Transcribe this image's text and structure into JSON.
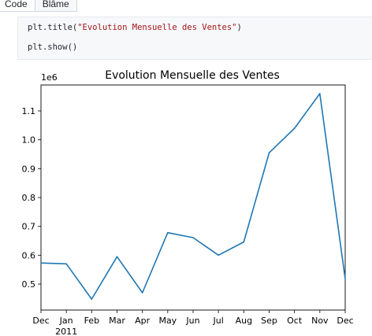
{
  "toolbar": {
    "code_label": "Code",
    "blame_label": "Blâme"
  },
  "code": {
    "line1_fn": "plt.title(",
    "line1_str": "\"Evolution Mensuelle des Ventes\"",
    "line1_end": ")",
    "line2": "plt.show()"
  },
  "colors": {
    "line": "#1f77b4",
    "axes": "#000000",
    "code_bg": "#f6f8fa"
  },
  "chart_data": {
    "type": "line",
    "title": "Evolution Mensuelle des Ventes",
    "xlabel": "",
    "ylabel": "",
    "y_offset_label": "1e6",
    "x_tick_labels": [
      "Dec",
      "Jan",
      "Feb",
      "Mar",
      "Apr",
      "May",
      "Jun",
      "Jul",
      "Aug",
      "Sep",
      "Oct",
      "Nov",
      "Dec"
    ],
    "x_year_label": "2011",
    "y_ticks": [
      0.5,
      0.6,
      0.7,
      0.8,
      0.9,
      1.0,
      1.1
    ],
    "y_tick_labels": [
      "0.5",
      "0.6",
      "0.7",
      "0.8",
      "0.9",
      "1.0",
      "1.1"
    ],
    "ylim": [
      0.41,
      1.19
    ],
    "x": [
      "2010-12",
      "2011-01",
      "2011-02",
      "2011-03",
      "2011-04",
      "2011-05",
      "2011-06",
      "2011-07",
      "2011-08",
      "2011-09",
      "2011-10",
      "2011-11",
      "2011-12"
    ],
    "values": [
      0.573,
      0.57,
      0.448,
      0.595,
      0.47,
      0.678,
      0.661,
      0.6,
      0.646,
      0.955,
      1.04,
      1.16,
      0.518
    ],
    "grid": false
  }
}
